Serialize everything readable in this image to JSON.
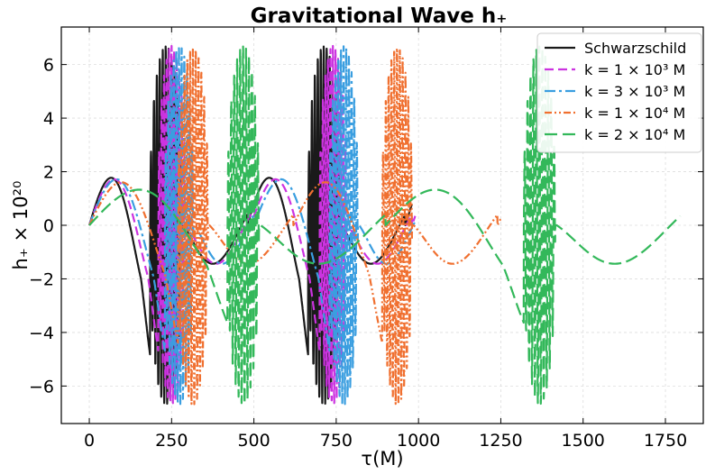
{
  "chart_data": {
    "type": "line",
    "title": "Gravitational Wave h₊",
    "xlabel": "τ(M)",
    "ylabel": "h₊ × 10²⁰",
    "xlim": [
      -85,
      1865
    ],
    "ylim": [
      -7.4,
      7.4
    ],
    "xticks": [
      0,
      250,
      500,
      750,
      1000,
      1250,
      1500,
      1750
    ],
    "yticks": [
      -6,
      -4,
      -2,
      0,
      2,
      4,
      6
    ],
    "xtick_labels": [
      "0",
      "250",
      "500",
      "750",
      "1000",
      "1250",
      "1500",
      "1750"
    ],
    "ytick_labels": [
      "−6",
      "−4",
      "−2",
      "0",
      "2",
      "4",
      "6"
    ],
    "grid": true,
    "legend_position": "top-right",
    "series": [
      {
        "name": "Schwarzschild",
        "color": "#1a1a1a",
        "dash": "solid",
        "t0": 0,
        "p0": 0,
        "period": 2000,
        "amp": 1.6,
        "chirp1": 195,
        "ring1": 265,
        "gap": 480,
        "end": 980
      },
      {
        "name": "k = 1 × 10³ M",
        "color": "#cc33e0",
        "dash": "dashed",
        "t0": 0,
        "p0": 0,
        "period": 2000,
        "amp": 1.55,
        "chirp1": 220,
        "ring1": 275,
        "gap": 490,
        "end": 990
      },
      {
        "name": "k = 3 × 10³ M",
        "color": "#3a9ee0",
        "dash": "dashdot",
        "t0": 0,
        "p0": 0,
        "period": 2000,
        "amp": 1.55,
        "chirp1": 240,
        "ring1": 300,
        "gap": 500,
        "end": 990
      },
      {
        "name": "k = 1 × 10⁴ M",
        "color": "#f07030",
        "dash": "dashdotdot",
        "t0": 0,
        "p0": 0,
        "period": 2000,
        "amp": 1.45,
        "chirp1": 280,
        "ring1": 345,
        "gap": 620,
        "end": 1250
      },
      {
        "name": "k = 2 × 10⁴ M",
        "color": "#33b85a",
        "dash": "longdash",
        "t0": 0,
        "p0": 0,
        "period": 2000,
        "amp": 1.2,
        "chirp1": 430,
        "ring1": 500,
        "gap": 900,
        "end": 1795
      }
    ],
    "legend_labels": [
      {
        "base": "Schwarzschild",
        "mult": "",
        "exp": "",
        "unit": ""
      },
      {
        "base": "k = 1 × 10",
        "exp": "3",
        "unit": " M"
      },
      {
        "base": "k = 3 × 10",
        "exp": "3",
        "unit": " M"
      },
      {
        "base": "k = 1 × 10",
        "exp": "4",
        "unit": " M"
      },
      {
        "base": "k = 2 × 10",
        "exp": "4",
        "unit": " M"
      }
    ]
  }
}
